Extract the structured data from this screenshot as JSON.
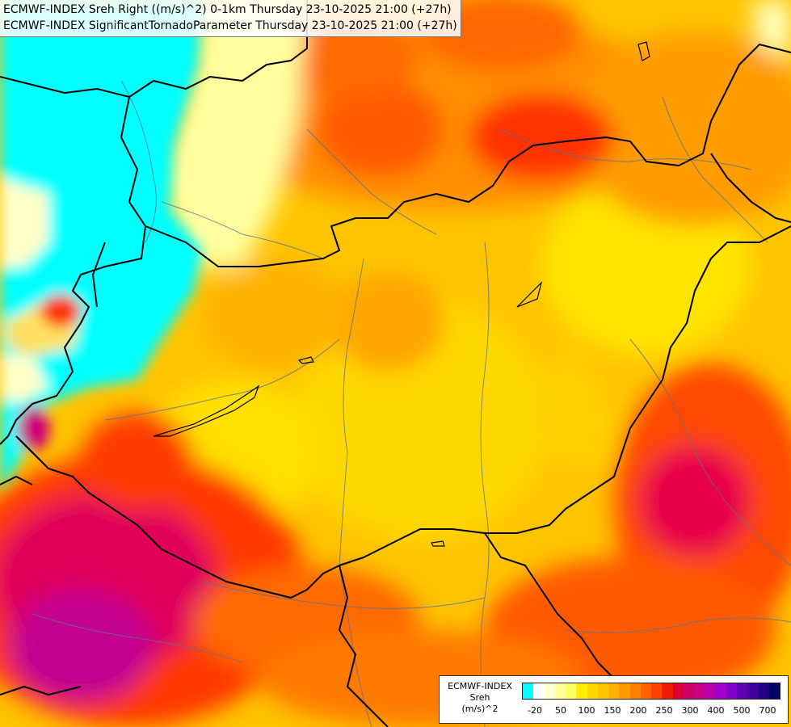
{
  "header": {
    "line1": "ECMWF-INDEX Sreh Right ((m/s)^2) 0-1km Thursday 23-10-2025 21:00 (+27h)",
    "line2": "ECMWF-INDEX SignificantTornadoParameter Thursday 23-10-2025 21:00 (+27h)"
  },
  "legend": {
    "model": "ECMWF-INDEX",
    "param": "Sreh",
    "unit": "(m/s)^2",
    "colors": [
      "#00ffff",
      "#ffffff",
      "#ffffd0",
      "#ffff99",
      "#ffff66",
      "#ffee00",
      "#ffd800",
      "#ffc400",
      "#ffb000",
      "#ff9a00",
      "#ff8000",
      "#ff6000",
      "#ff4000",
      "#f01a00",
      "#dc0030",
      "#cc0066",
      "#c40088",
      "#b800aa",
      "#a000cc",
      "#8000cc",
      "#6000b0",
      "#40009a",
      "#200080",
      "#000066"
    ],
    "ticks": [
      "-20",
      "50",
      "100",
      "150",
      "200",
      "250",
      "300",
      "400",
      "500",
      "700"
    ]
  },
  "map": {
    "palette": {
      "cyan": "#00ffff",
      "cream": "#ffffc8",
      "yellow": "#ffe800",
      "gold": "#ffc000",
      "orange": "#ff9a00",
      "dark_orange": "#ff7000",
      "red": "#ff3300",
      "crimson": "#e8004a",
      "magenta": "#cc007a",
      "purple": "#a000c0",
      "border": "#000000",
      "river": "#607090"
    }
  }
}
